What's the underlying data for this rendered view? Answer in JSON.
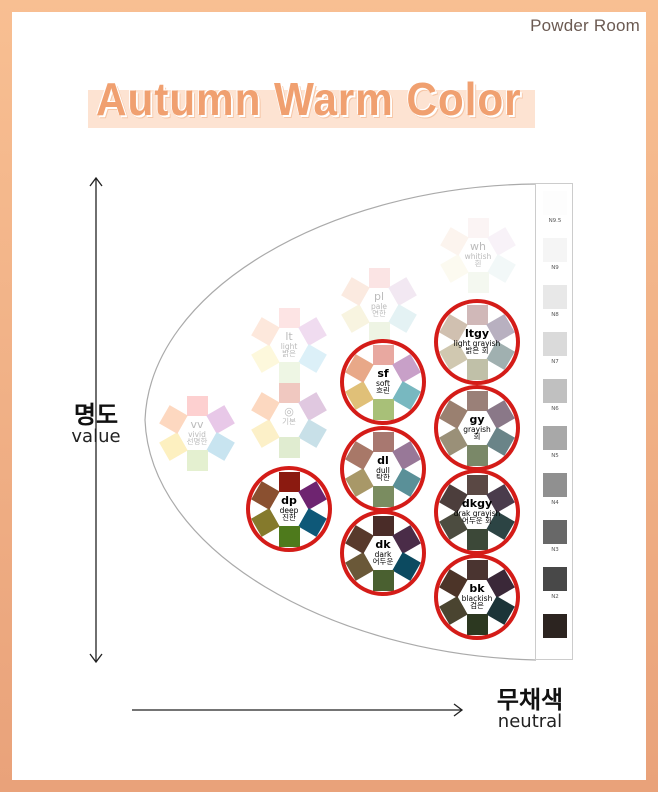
{
  "brand": "Powder Room",
  "title": "Autumn Warm Color",
  "axes": {
    "value_ko": "명도",
    "value_en": "value",
    "neutral_ko": "무채색",
    "neutral_en": "neutral"
  },
  "accent_ring_color": "#d41c18",
  "wheels": [
    {
      "id": "vv",
      "code": "vv",
      "name": "vivid",
      "korean": "선명한",
      "highlighted": false,
      "colors": [
        "#fdd0d0",
        "#e8c8e8",
        "#c8e4f0",
        "#e4f0d0",
        "#fdf0c0",
        "#fdd8c0"
      ]
    },
    {
      "id": "basic",
      "code": "◎",
      "name": "",
      "korean": "기본",
      "highlighted": false,
      "colors": [
        "#f0c8c0",
        "#e0c8e0",
        "#c8e0e8",
        "#e0ecd0",
        "#fcf0c8",
        "#fcd8c0"
      ]
    },
    {
      "id": "lt",
      "code": "lt",
      "name": "light",
      "korean": "밝은",
      "highlighted": false,
      "colors": [
        "#fde4e4",
        "#f0dcf0",
        "#dcf0f8",
        "#eef6e4",
        "#fdf8dc",
        "#fde8dc"
      ]
    },
    {
      "id": "pl",
      "code": "pl",
      "name": "pale",
      "korean": "연한",
      "highlighted": false,
      "colors": [
        "#fbe4e4",
        "#f2e8f2",
        "#e4f2f4",
        "#eef4e4",
        "#f8f4e0",
        "#fbeae0"
      ]
    },
    {
      "id": "wh",
      "code": "wh",
      "name": "whitish",
      "korean": "흰",
      "highlighted": false,
      "colors": [
        "#fbf4f4",
        "#f8f2f8",
        "#f2f8f8",
        "#f4f8f0",
        "#fcfaf0",
        "#fcf4ee"
      ]
    },
    {
      "id": "sf",
      "code": "sf",
      "name": "soft",
      "korean": "흐린",
      "highlighted": true,
      "colors": [
        "#e8a8a0",
        "#c8a0c8",
        "#78b8c0",
        "#a8c078",
        "#e0c078",
        "#e8a888"
      ]
    },
    {
      "id": "dl",
      "code": "dl",
      "name": "dull",
      "korean": "탁한",
      "highlighted": true,
      "colors": [
        "#a87870",
        "#987898",
        "#5a9098",
        "#7a8c60",
        "#a89868",
        "#a87868"
      ]
    },
    {
      "id": "dk",
      "code": "dk",
      "name": "dark",
      "korean": "어두운",
      "highlighted": true,
      "colors": [
        "#4a2c28",
        "#4a2c48",
        "#0c4a60",
        "#4a6030",
        "#6a5838",
        "#583a2c"
      ]
    },
    {
      "id": "dp",
      "code": "dp",
      "name": "deep",
      "korean": "진한",
      "highlighted": true,
      "colors": [
        "#8b1a10",
        "#6e2470",
        "#0e5878",
        "#4e7a1c",
        "#857a2c",
        "#8a5030"
      ]
    },
    {
      "id": "ltgy",
      "code": "ltgy",
      "name": "light grayish",
      "korean": "밝은 회",
      "highlighted": true,
      "colors": [
        "#d0b8b8",
        "#b8b0c0",
        "#a0b0b0",
        "#c0c0a8",
        "#d0c8b0",
        "#d0c0b0"
      ]
    },
    {
      "id": "gy",
      "code": "gy",
      "name": "grayish",
      "korean": "회",
      "highlighted": true,
      "colors": [
        "#9a8078",
        "#8a7888",
        "#6a8488",
        "#7a8868",
        "#9a9078",
        "#9a8070"
      ]
    },
    {
      "id": "dkgy",
      "code": "dkgy",
      "name": "drak grayish",
      "korean": "어두운 회",
      "highlighted": true,
      "colors": [
        "#5a4844",
        "#4a3c4c",
        "#2c4444",
        "#3c4838",
        "#4c4c40",
        "#4c3e3c"
      ]
    },
    {
      "id": "bk",
      "code": "bk",
      "name": "blackish",
      "korean": "검은",
      "highlighted": true,
      "colors": [
        "#4a3430",
        "#3a2838",
        "#1c3438",
        "#2c3820",
        "#4a4430",
        "#4c3428"
      ]
    }
  ],
  "grayscale": [
    {
      "label": "N9.5",
      "color": "#fdfdfd"
    },
    {
      "label": "N9",
      "color": "#f5f5f5"
    },
    {
      "label": "N8",
      "color": "#e8e8e8"
    },
    {
      "label": "N7",
      "color": "#dadada"
    },
    {
      "label": "N6",
      "color": "#c0c0c0"
    },
    {
      "label": "N5",
      "color": "#a8a8a8"
    },
    {
      "label": "N4",
      "color": "#909090"
    },
    {
      "label": "N3",
      "color": "#686868"
    },
    {
      "label": "N2",
      "color": "#484848"
    },
    {
      "label": "",
      "color": "#2c2420"
    }
  ]
}
